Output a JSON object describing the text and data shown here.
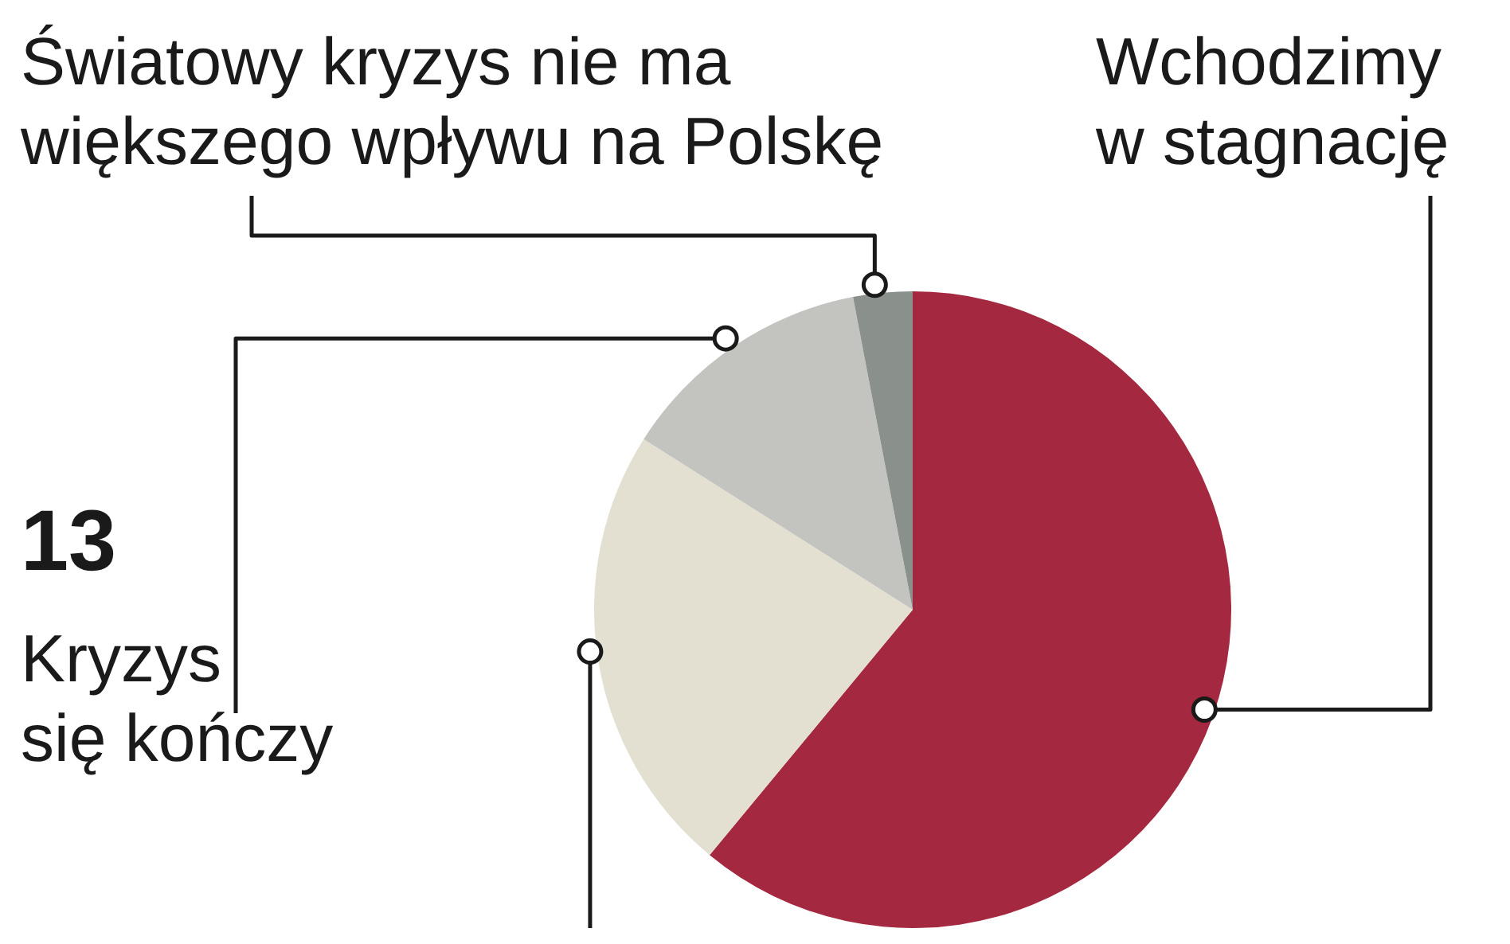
{
  "chart_data": {
    "type": "pie",
    "categories": [
      "Wchodzimy w stagnację",
      null,
      "Kryzys się kończy",
      "Światowy kryzys nie ma większego wpływu na Polskę"
    ],
    "values": [
      61,
      23,
      13,
      3
    ],
    "colors": [
      "#a4283f",
      "#e3e0d2",
      "#c3c4bf",
      "#8a918d"
    ],
    "value_labels": [
      null,
      null,
      "13",
      null
    ],
    "legend": false
  }
}
